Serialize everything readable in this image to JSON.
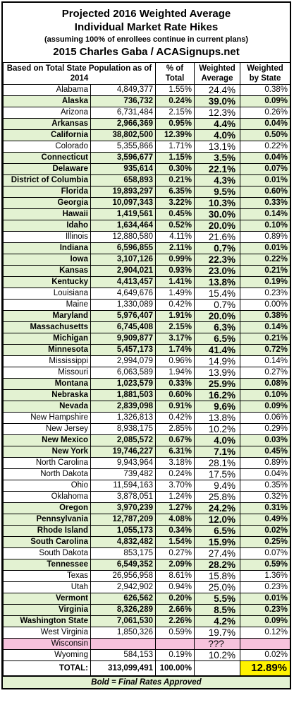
{
  "title": {
    "line1": "Projected 2016 Weighted Average",
    "line2": "Individual Market Rate Hikes",
    "line3": "(assuming 100% of enrollees continue in current plans)",
    "line4": "2015 Charles Gaba / ACASignups.net"
  },
  "columns": {
    "state": "Based on Total State Population as of 2014",
    "pct": "% of Total",
    "avg": "Weighted Average",
    "by_state": "Weighted by State"
  },
  "rows": [
    {
      "state": "Alabama",
      "pop": "4,849,377",
      "pct": "1.55%",
      "avg": "24.4%",
      "wbs": "0.38%",
      "approved": false
    },
    {
      "state": "Alaska",
      "pop": "736,732",
      "pct": "0.24%",
      "avg": "39.0%",
      "wbs": "0.09%",
      "approved": true
    },
    {
      "state": "Arizona",
      "pop": "6,731,484",
      "pct": "2.15%",
      "avg": "12.3%",
      "wbs": "0.26%",
      "approved": false
    },
    {
      "state": "Arkansas",
      "pop": "2,966,369",
      "pct": "0.95%",
      "avg": "4.4%",
      "wbs": "0.04%",
      "approved": true
    },
    {
      "state": "California",
      "pop": "38,802,500",
      "pct": "12.39%",
      "avg": "4.0%",
      "wbs": "0.50%",
      "approved": true
    },
    {
      "state": "Colorado",
      "pop": "5,355,866",
      "pct": "1.71%",
      "avg": "13.1%",
      "wbs": "0.22%",
      "approved": false
    },
    {
      "state": "Connecticut",
      "pop": "3,596,677",
      "pct": "1.15%",
      "avg": "3.5%",
      "wbs": "0.04%",
      "approved": true
    },
    {
      "state": "Delaware",
      "pop": "935,614",
      "pct": "0.30%",
      "avg": "22.1%",
      "wbs": "0.07%",
      "approved": true
    },
    {
      "state": "District of Columbia",
      "pop": "658,893",
      "pct": "0.21%",
      "avg": "4.3%",
      "wbs": "0.01%",
      "approved": true
    },
    {
      "state": "Florida",
      "pop": "19,893,297",
      "pct": "6.35%",
      "avg": "9.5%",
      "wbs": "0.60%",
      "approved": true
    },
    {
      "state": "Georgia",
      "pop": "10,097,343",
      "pct": "3.22%",
      "avg": "10.3%",
      "wbs": "0.33%",
      "approved": true
    },
    {
      "state": "Hawaii",
      "pop": "1,419,561",
      "pct": "0.45%",
      "avg": "30.0%",
      "wbs": "0.14%",
      "approved": true
    },
    {
      "state": "Idaho",
      "pop": "1,634,464",
      "pct": "0.52%",
      "avg": "20.0%",
      "wbs": "0.10%",
      "approved": true
    },
    {
      "state": "Illinois",
      "pop": "12,880,580",
      "pct": "4.11%",
      "avg": "21.6%",
      "wbs": "0.89%",
      "approved": false
    },
    {
      "state": "Indiana",
      "pop": "6,596,855",
      "pct": "2.11%",
      "avg": "0.7%",
      "wbs": "0.01%",
      "approved": true
    },
    {
      "state": "Iowa",
      "pop": "3,107,126",
      "pct": "0.99%",
      "avg": "22.3%",
      "wbs": "0.22%",
      "approved": true
    },
    {
      "state": "Kansas",
      "pop": "2,904,021",
      "pct": "0.93%",
      "avg": "23.0%",
      "wbs": "0.21%",
      "approved": true
    },
    {
      "state": "Kentucky",
      "pop": "4,413,457",
      "pct": "1.41%",
      "avg": "13.8%",
      "wbs": "0.19%",
      "approved": true
    },
    {
      "state": "Louisiana",
      "pop": "4,649,676",
      "pct": "1.49%",
      "avg": "15.4%",
      "wbs": "0.23%",
      "approved": false
    },
    {
      "state": "Maine",
      "pop": "1,330,089",
      "pct": "0.42%",
      "avg": "0.7%",
      "wbs": "0.00%",
      "approved": false
    },
    {
      "state": "Maryland",
      "pop": "5,976,407",
      "pct": "1.91%",
      "avg": "20.0%",
      "wbs": "0.38%",
      "approved": true
    },
    {
      "state": "Massachusetts",
      "pop": "6,745,408",
      "pct": "2.15%",
      "avg": "6.3%",
      "wbs": "0.14%",
      "approved": true
    },
    {
      "state": "Michigan",
      "pop": "9,909,877",
      "pct": "3.17%",
      "avg": "6.5%",
      "wbs": "0.21%",
      "approved": true
    },
    {
      "state": "Minnesota",
      "pop": "5,457,173",
      "pct": "1.74%",
      "avg": "41.4%",
      "wbs": "0.72%",
      "approved": true
    },
    {
      "state": "Mississippi",
      "pop": "2,994,079",
      "pct": "0.96%",
      "avg": "14.9%",
      "wbs": "0.14%",
      "approved": false
    },
    {
      "state": "Missouri",
      "pop": "6,063,589",
      "pct": "1.94%",
      "avg": "13.9%",
      "wbs": "0.27%",
      "approved": false
    },
    {
      "state": "Montana",
      "pop": "1,023,579",
      "pct": "0.33%",
      "avg": "25.9%",
      "wbs": "0.08%",
      "approved": true
    },
    {
      "state": "Nebraska",
      "pop": "1,881,503",
      "pct": "0.60%",
      "avg": "16.2%",
      "wbs": "0.10%",
      "approved": true
    },
    {
      "state": "Nevada",
      "pop": "2,839,098",
      "pct": "0.91%",
      "avg": "9.6%",
      "wbs": "0.09%",
      "approved": true
    },
    {
      "state": "New Hampshire",
      "pop": "1,326,813",
      "pct": "0.42%",
      "avg": "13.8%",
      "wbs": "0.06%",
      "approved": false
    },
    {
      "state": "New Jersey",
      "pop": "8,938,175",
      "pct": "2.85%",
      "avg": "10.2%",
      "wbs": "0.29%",
      "approved": false
    },
    {
      "state": "New Mexico",
      "pop": "2,085,572",
      "pct": "0.67%",
      "avg": "4.0%",
      "wbs": "0.03%",
      "approved": true
    },
    {
      "state": "New York",
      "pop": "19,746,227",
      "pct": "6.31%",
      "avg": "7.1%",
      "wbs": "0.45%",
      "approved": true
    },
    {
      "state": "North Carolina",
      "pop": "9,943,964",
      "pct": "3.18%",
      "avg": "28.1%",
      "wbs": "0.89%",
      "approved": false
    },
    {
      "state": "North Dakota",
      "pop": "739,482",
      "pct": "0.24%",
      "avg": "17.5%",
      "wbs": "0.04%",
      "approved": false
    },
    {
      "state": "Ohio",
      "pop": "11,594,163",
      "pct": "3.70%",
      "avg": "9.4%",
      "wbs": "0.35%",
      "approved": false
    },
    {
      "state": "Oklahoma",
      "pop": "3,878,051",
      "pct": "1.24%",
      "avg": "25.8%",
      "wbs": "0.32%",
      "approved": false
    },
    {
      "state": "Oregon",
      "pop": "3,970,239",
      "pct": "1.27%",
      "avg": "24.2%",
      "wbs": "0.31%",
      "approved": true
    },
    {
      "state": "Pennsylvania",
      "pop": "12,787,209",
      "pct": "4.08%",
      "avg": "12.0%",
      "wbs": "0.49%",
      "approved": true
    },
    {
      "state": "Rhode Island",
      "pop": "1,055,173",
      "pct": "0.34%",
      "avg": "6.5%",
      "wbs": "0.02%",
      "approved": true
    },
    {
      "state": "South Carolina",
      "pop": "4,832,482",
      "pct": "1.54%",
      "avg": "15.9%",
      "wbs": "0.25%",
      "approved": true
    },
    {
      "state": "South Dakota",
      "pop": "853,175",
      "pct": "0.27%",
      "avg": "27.4%",
      "wbs": "0.07%",
      "approved": false
    },
    {
      "state": "Tennessee",
      "pop": "6,549,352",
      "pct": "2.09%",
      "avg": "28.2%",
      "wbs": "0.59%",
      "approved": true
    },
    {
      "state": "Texas",
      "pop": "26,956,958",
      "pct": "8.61%",
      "avg": "15.8%",
      "wbs": "1.36%",
      "approved": false
    },
    {
      "state": "Utah",
      "pop": "2,942,902",
      "pct": "0.94%",
      "avg": "25.0%",
      "wbs": "0.23%",
      "approved": false
    },
    {
      "state": "Vermont",
      "pop": "626,562",
      "pct": "0.20%",
      "avg": "5.5%",
      "wbs": "0.01%",
      "approved": true
    },
    {
      "state": "Virginia",
      "pop": "8,326,289",
      "pct": "2.66%",
      "avg": "8.5%",
      "wbs": "0.23%",
      "approved": true
    },
    {
      "state": "Washington State",
      "pop": "7,061,530",
      "pct": "2.26%",
      "avg": "4.2%",
      "wbs": "0.09%",
      "approved": true
    },
    {
      "state": "West Virginia",
      "pop": "1,850,326",
      "pct": "0.59%",
      "avg": "19.7%",
      "wbs": "0.12%",
      "approved": false
    },
    {
      "state": "Wisconsin",
      "pop": "",
      "pct": "",
      "avg": "???",
      "wbs": "",
      "approved": false,
      "pending": true
    },
    {
      "state": "Wyoming",
      "pop": "584,153",
      "pct": "0.19%",
      "avg": "10.2%",
      "wbs": "0.02%",
      "approved": false
    }
  ],
  "total": {
    "label": "TOTAL:",
    "pop": "313,099,491",
    "pct": "100.00%",
    "grand": "12.89%"
  },
  "footer": "Bold = Final Rates Approved",
  "colors": {
    "approved_fill": "#e3f2d2",
    "pending_fill": "#f6c2dc",
    "total_highlight": "#fff200"
  }
}
